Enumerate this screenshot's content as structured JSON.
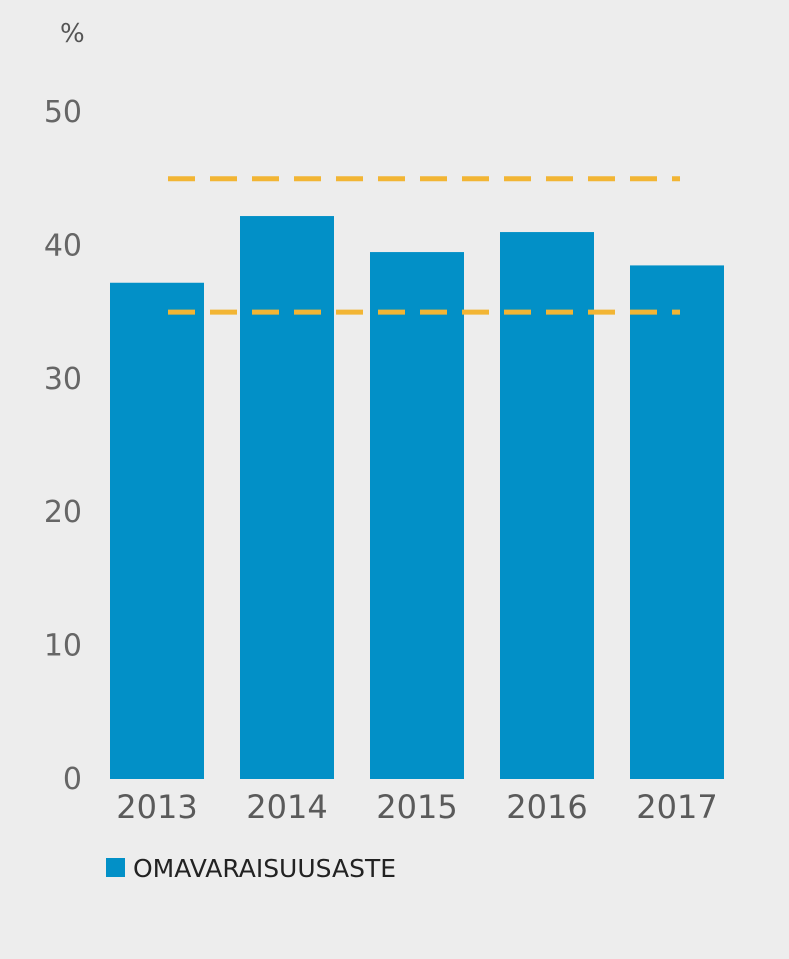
{
  "chart_data": {
    "type": "bar",
    "title": "",
    "unit_label": "%",
    "xlabel": "",
    "ylabel": "",
    "categories": [
      "2013",
      "2014",
      "2015",
      "2016",
      "2017"
    ],
    "series": [
      {
        "name": "OMAVARAISUUSASTE",
        "values": [
          37.2,
          42.2,
          39.5,
          41.0,
          38.5
        ],
        "color": "#0290c7"
      }
    ],
    "target_lines": [
      {
        "value": 45,
        "style": "dashed",
        "color": "#f2b534"
      },
      {
        "value": 35,
        "style": "dashed",
        "color": "#f2b534"
      }
    ],
    "ylim": [
      0,
      50
    ],
    "yticks": [
      0,
      10,
      20,
      30,
      40,
      50
    ],
    "grid": false,
    "legend_position": "bottom-left"
  },
  "colors": {
    "background": "#ededed",
    "bar": "#0290c7",
    "target": "#f2b534"
  }
}
